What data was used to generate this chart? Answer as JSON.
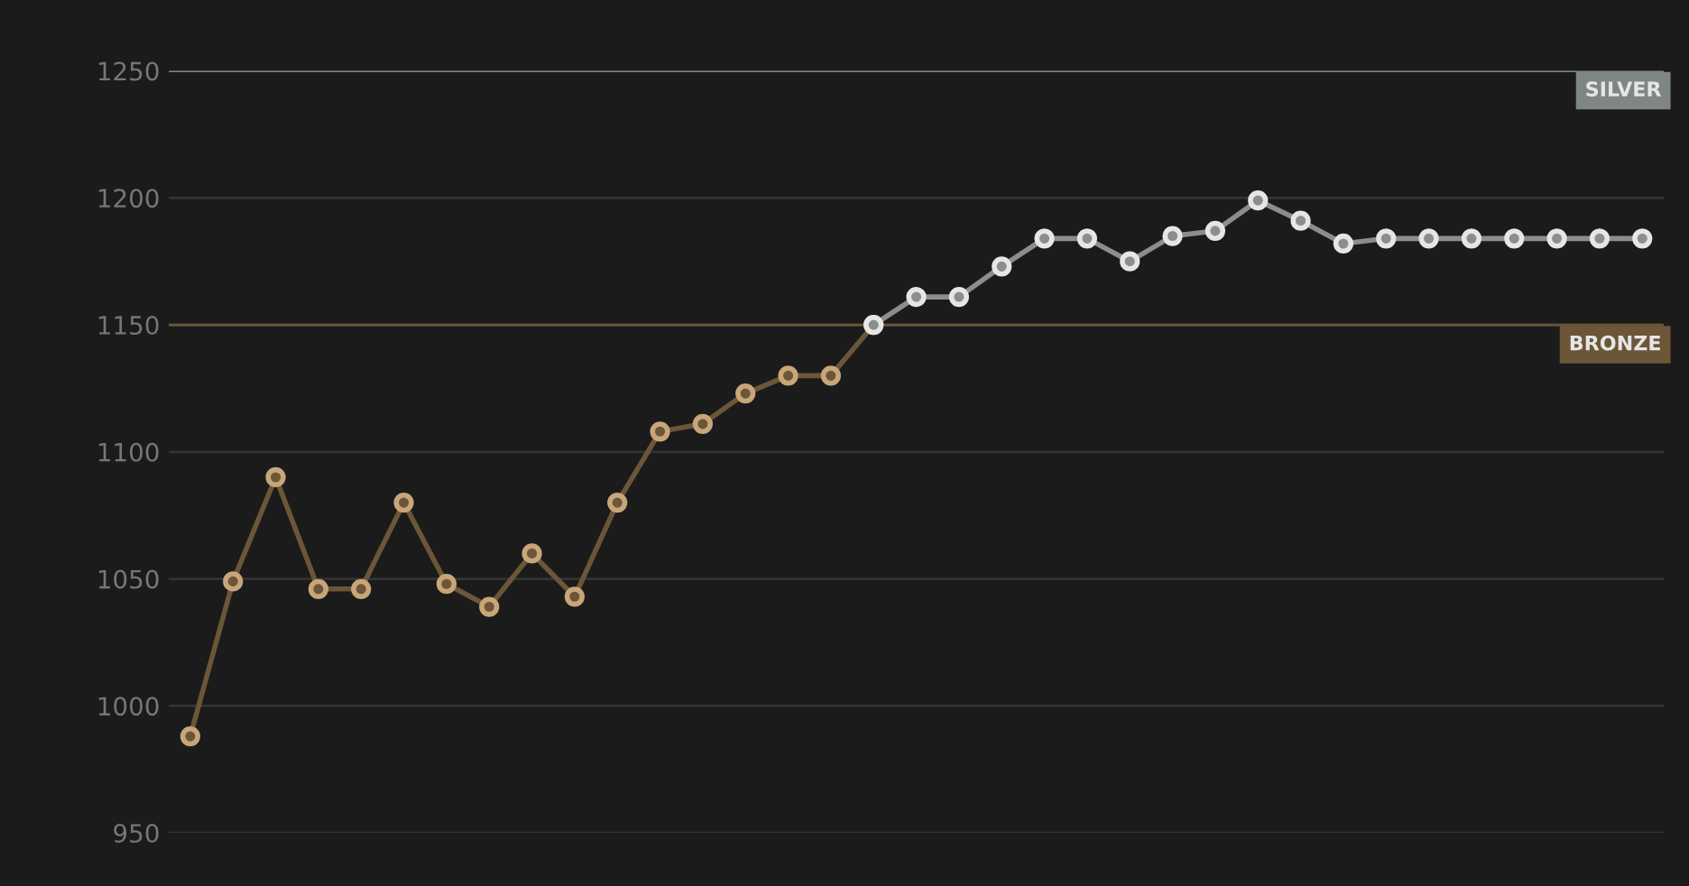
{
  "chart_data": {
    "type": "line",
    "categories": [
      null,
      null,
      null,
      null,
      null,
      null,
      null,
      null,
      null,
      null,
      null,
      null,
      null,
      null,
      null,
      null,
      null,
      null,
      null,
      null,
      null,
      null,
      null,
      null,
      null,
      null,
      null,
      null,
      null,
      null,
      null,
      null,
      null,
      null,
      null
    ],
    "series": [
      {
        "color": "#6b5638",
        "values": [
          988,
          1049,
          1090,
          1046,
          1046,
          1080,
          1048,
          1039,
          1060,
          1043,
          1080,
          1108,
          1111,
          1123,
          1130,
          1130,
          1150,
          null,
          null,
          null,
          null,
          null,
          null,
          null,
          null,
          null,
          null,
          null,
          null,
          null,
          null,
          null,
          null,
          null,
          null
        ]
      },
      {
        "color": "#8a8f8e",
        "values": [
          null,
          null,
          null,
          null,
          null,
          null,
          null,
          null,
          null,
          null,
          null,
          null,
          null,
          null,
          null,
          null,
          1150,
          1161,
          1161,
          1173,
          1184,
          1184,
          1175,
          1185,
          1187,
          1199,
          1191,
          1182,
          1184,
          1184,
          1184,
          1184,
          1184,
          1184,
          1184
        ]
      }
    ],
    "ylim": [
      950,
      1250
    ],
    "yticks": [
      950,
      1000,
      1050,
      1100,
      1150,
      1200,
      1250
    ],
    "grid": "y",
    "marker": "circle",
    "line_style": "solid",
    "legend": false,
    "ref_lines": [
      {
        "axis": "y",
        "value": 1150,
        "label": "BRONZE",
        "color": "#6b5638"
      },
      {
        "axis": "y",
        "value": 1250,
        "label": "SILVER",
        "color": "#7f8685"
      }
    ]
  }
}
